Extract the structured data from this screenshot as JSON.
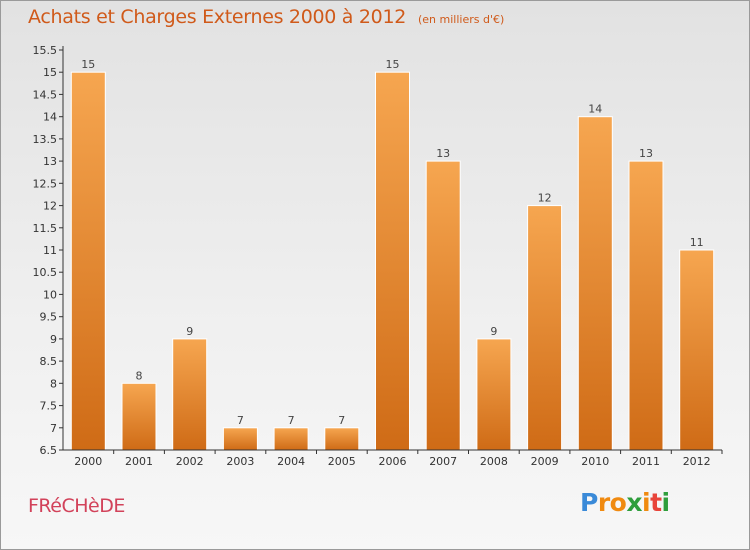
{
  "header": {
    "title": "Achats et Charges Externes 2000 à 2012",
    "subtitle": "(en milliers d'€)"
  },
  "footer": {
    "commune": "FRéCHèDE",
    "logo_letters": [
      "P",
      "r",
      "o",
      "x",
      "i",
      "t",
      "i"
    ]
  },
  "colors": {
    "bar_top": "#f6a650",
    "bar_bottom": "#cf6b16",
    "title": "#d05a1a",
    "commune": "#d2425a",
    "logo": [
      "#3a8ad8",
      "#f08a10",
      "#f08a10",
      "#2f9e3c",
      "#f08a10",
      "#e8443a",
      "#2f9e3c"
    ]
  },
  "chart_data": {
    "type": "bar",
    "title": "Achats et Charges Externes 2000 à 2012",
    "subtitle": "(en milliers d'€)",
    "categories": [
      "2000",
      "2001",
      "2002",
      "2003",
      "2004",
      "2005",
      "2006",
      "2007",
      "2008",
      "2009",
      "2010",
      "2011",
      "2012"
    ],
    "values": [
      15,
      8,
      9,
      7,
      7,
      7,
      15,
      13,
      9,
      12,
      14,
      13,
      11
    ],
    "ylim": [
      6.5,
      15.5
    ],
    "yticks": [
      "6.5",
      "7",
      "7.5",
      "8",
      "8.5",
      "9",
      "9.5",
      "10",
      "10.5",
      "11",
      "11.5",
      "12",
      "12.5",
      "13",
      "13.5",
      "14",
      "14.5",
      "15",
      "15.5"
    ],
    "xlabel": "",
    "ylabel": "",
    "grid": false,
    "data_labels": true
  }
}
